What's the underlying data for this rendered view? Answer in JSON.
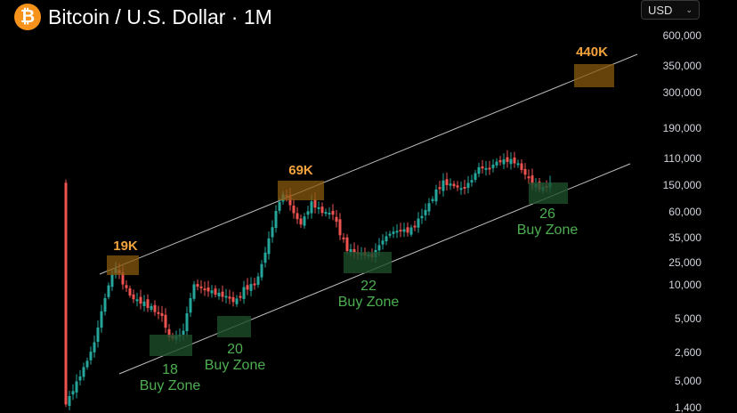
{
  "header": {
    "coin_symbol": "₿",
    "title": "Bitcoin / U.S. Dollar · 1M"
  },
  "currency_select": {
    "value": "USD",
    "chevron": "⌄"
  },
  "colors": {
    "background": "#000000",
    "up": "#26a69a",
    "down": "#ef5350",
    "peak_box": "#8a5a10",
    "peak_text": "#f2a33c",
    "zone_box": "#1e4d2b",
    "zone_text": "#4caf50",
    "channel_line": "#bdbdbd",
    "coin": "#f7931a",
    "axis_text": "#d1d4dc"
  },
  "chart_data": {
    "type": "candlestick",
    "title": "Bitcoin / U.S. Dollar · 1M",
    "y_axis_labels": [
      "600,000",
      "350,000",
      "300,000",
      "190,000",
      "110,000",
      "150,000",
      "60,000",
      "35,000",
      "25,000",
      "10,000",
      "5,000",
      "2,600",
      "5,000",
      "1,400"
    ],
    "peak_labels": [
      "19K",
      "69K",
      "440K"
    ],
    "buy_zones": [
      {
        "year": "18",
        "label": "Buy Zone"
      },
      {
        "year": "20",
        "label": "Buy Zone"
      },
      {
        "year": "22",
        "label": "Buy Zone"
      },
      {
        "year": "26",
        "label": "Buy Zone"
      }
    ],
    "channel": {
      "upper": "resistance",
      "lower": "support"
    },
    "grid": false
  }
}
